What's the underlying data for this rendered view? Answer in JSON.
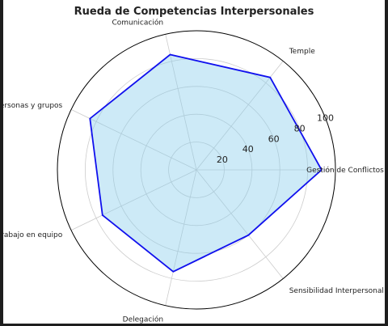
{
  "chart_data": {
    "type": "radar",
    "title": "Rueda de Competencias Interpersonales",
    "categories": [
      "Gestión de Conflictos",
      "Temple",
      "Comunicación",
      "Dirección de personas y grupos",
      "Trabajo en equipo",
      "Delegación",
      "Sensibilidad Interpersonal"
    ],
    "series": [
      {
        "values": [
          90,
          85,
          85,
          85,
          75,
          75,
          60
        ]
      }
    ],
    "rlim": [
      0,
      100
    ],
    "rticks": [
      20,
      40,
      60,
      80,
      100
    ],
    "rtick_labels": [
      "20",
      "40",
      "60",
      "80",
      "100"
    ],
    "grid": true,
    "colors": {
      "line": "#1010ee",
      "fill": "#87ceeb",
      "grid": "#cccccc",
      "frame": "#000000"
    }
  }
}
